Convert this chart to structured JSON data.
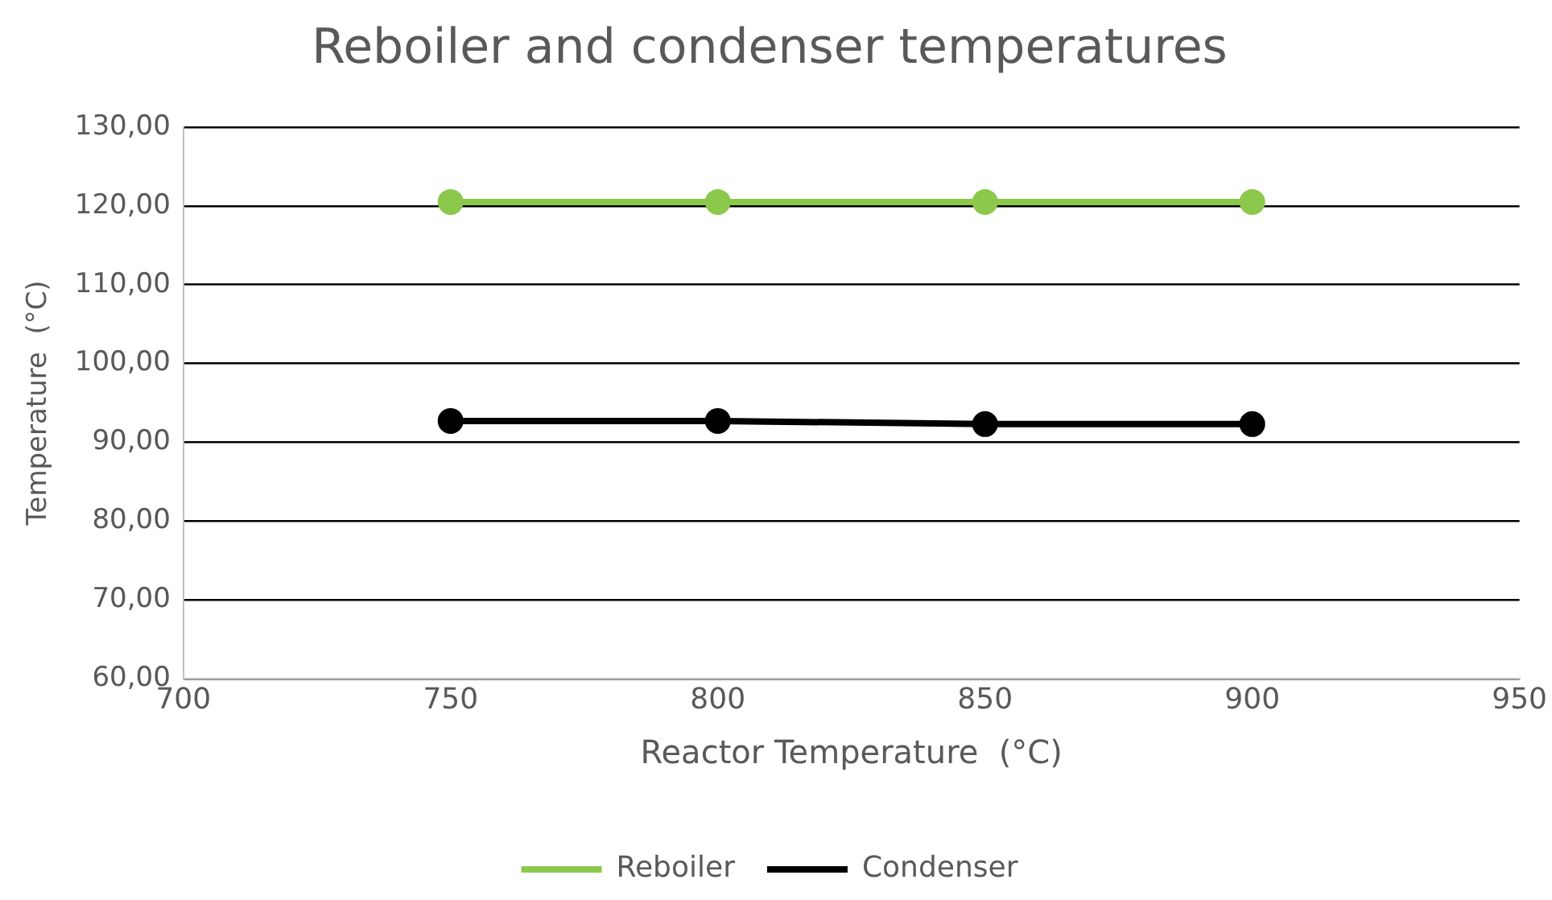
{
  "chart_data": {
    "type": "line",
    "title": "Reboiler and condenser temperatures",
    "xlabel": "Reactor Temperature  (°C)",
    "ylabel": "Temperature  (°C)",
    "x": [
      750,
      800,
      850,
      900
    ],
    "series": [
      {
        "name": "Reboiler",
        "color": "#8cc84b",
        "values": [
          120.5,
          120.5,
          120.5,
          120.5
        ]
      },
      {
        "name": "Condenser",
        "color": "#000000",
        "values": [
          92.7,
          92.7,
          92.3,
          92.3
        ]
      }
    ],
    "xlim": [
      700,
      950
    ],
    "xticks": [
      700,
      750,
      800,
      850,
      900,
      950
    ],
    "ylim": [
      60,
      130
    ],
    "yticks": [
      {
        "value": 60,
        "label": "60,00"
      },
      {
        "value": 70,
        "label": "70,00"
      },
      {
        "value": 80,
        "label": "80,00"
      },
      {
        "value": 90,
        "label": "90,00"
      },
      {
        "value": 100,
        "label": "100,00"
      },
      {
        "value": 110,
        "label": "110,00"
      },
      {
        "value": 120,
        "label": "120,00"
      },
      {
        "value": 130,
        "label": "130,00"
      }
    ],
    "grid": "y",
    "legend": "bottom",
    "marker": "circle"
  }
}
